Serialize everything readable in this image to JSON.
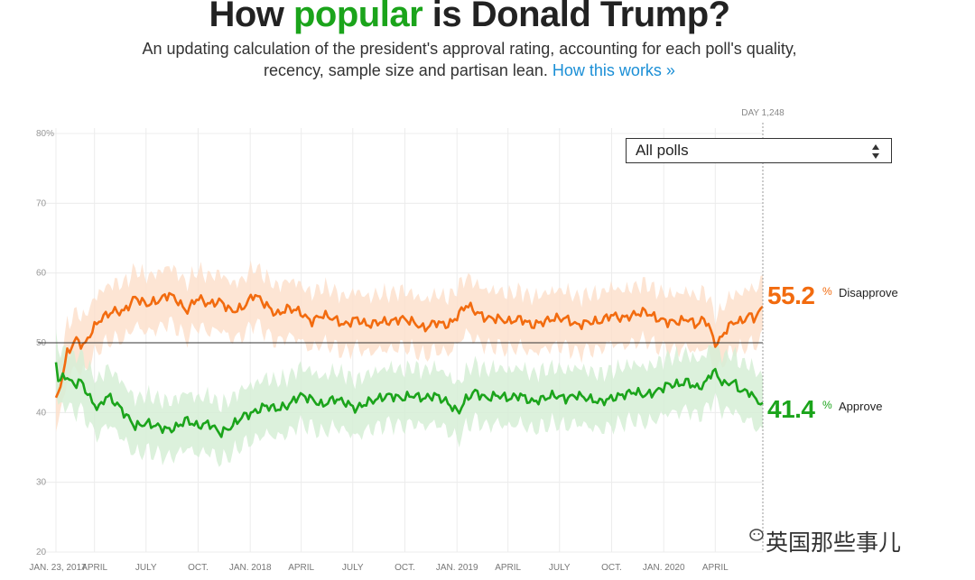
{
  "header": {
    "title_pre": "How ",
    "title_accent": "popular",
    "title_post": " is Donald Trump?",
    "subtitle_line1": "An updating calculation of the president's approval rating, accounting for each poll's quality,",
    "subtitle_line2": "recency, sample size and partisan lean.",
    "link_text": "How this works »"
  },
  "dropdown": {
    "selected": "All polls"
  },
  "day_label": "DAY 1,248",
  "readouts": {
    "disapprove_value": "55.2",
    "disapprove_label": "Disapprove",
    "approve_value": "41.4",
    "approve_label": "Approve",
    "percent_sign": "%"
  },
  "watermark": "英国那些事儿",
  "colors": {
    "approve": "#1ba41b",
    "disapprove": "#f26b0f",
    "approve_band": "#d6efd6",
    "disapprove_band": "#fde0cc",
    "accent_title": "#1ba41b",
    "link": "#1b8fd6"
  },
  "chart_data": {
    "type": "line",
    "title": "How popular is Donald Trump?",
    "ylim": [
      20,
      80
    ],
    "yticks": [
      "80%",
      "70",
      "60",
      "50",
      "40",
      "30",
      "20"
    ],
    "ytick_values": [
      80,
      70,
      60,
      50,
      40,
      30,
      20
    ],
    "xlim_days": [
      0,
      1248
    ],
    "xticks": [
      {
        "label": "JAN. 23, 2017",
        "day": 0
      },
      {
        "label": "APRIL",
        "day": 68
      },
      {
        "label": "JULY",
        "day": 159
      },
      {
        "label": "OCT.",
        "day": 251
      },
      {
        "label": "JAN. 2018",
        "day": 343
      },
      {
        "label": "APRIL",
        "day": 433
      },
      {
        "label": "JULY",
        "day": 524
      },
      {
        "label": "OCT.",
        "day": 616
      },
      {
        "label": "JAN. 2019",
        "day": 708
      },
      {
        "label": "APRIL",
        "day": 798
      },
      {
        "label": "JULY",
        "day": 889
      },
      {
        "label": "OCT.",
        "day": 981
      },
      {
        "label": "JAN. 2020",
        "day": 1073
      },
      {
        "label": "APRIL",
        "day": 1164
      }
    ],
    "series": [
      {
        "name": "Disapprove",
        "days": [
          0,
          8,
          20,
          35,
          50,
          65,
          80,
          100,
          120,
          140,
          160,
          180,
          200,
          215,
          230,
          250,
          270,
          290,
          310,
          330,
          350,
          370,
          390,
          410,
          430,
          450,
          470,
          490,
          510,
          530,
          550,
          570,
          590,
          610,
          630,
          650,
          670,
          690,
          700,
          710,
          725,
          740,
          760,
          780,
          800,
          820,
          840,
          860,
          880,
          900,
          920,
          940,
          960,
          980,
          1000,
          1020,
          1040,
          1060,
          1080,
          1100,
          1115,
          1130,
          1145,
          1155,
          1162,
          1170,
          1180,
          1195,
          1210,
          1225,
          1235,
          1248
        ],
        "values": [
          41.5,
          44,
          48.5,
          50.5,
          49.5,
          52,
          53.5,
          54.5,
          54.5,
          56.5,
          55.5,
          56,
          57,
          56,
          54.5,
          56.5,
          55.5,
          56,
          54.5,
          55,
          57,
          55.5,
          54,
          55,
          54.5,
          53,
          54,
          53.5,
          52.5,
          53.5,
          52.5,
          53,
          53,
          53.5,
          53,
          52,
          53,
          52.5,
          53,
          54,
          55.5,
          54.5,
          53.5,
          53.5,
          53,
          53.5,
          52.5,
          53,
          53.5,
          53.5,
          52.5,
          53,
          53,
          54,
          53.5,
          54,
          54.5,
          53.5,
          53,
          53,
          53.5,
          52.5,
          53.5,
          52,
          50,
          50,
          51.5,
          53,
          53,
          54,
          53.5,
          55.2
        ],
        "uncertainty": 4.0
      },
      {
        "name": "Approve",
        "days": [
          0,
          5,
          15,
          30,
          45,
          60,
          75,
          90,
          110,
          125,
          140,
          160,
          180,
          200,
          215,
          230,
          250,
          270,
          290,
          310,
          330,
          350,
          370,
          390,
          410,
          430,
          450,
          470,
          490,
          510,
          530,
          550,
          570,
          590,
          610,
          630,
          650,
          670,
          690,
          710,
          725,
          740,
          760,
          780,
          800,
          820,
          840,
          860,
          880,
          900,
          920,
          940,
          960,
          980,
          1000,
          1020,
          1040,
          1060,
          1080,
          1100,
          1115,
          1130,
          1145,
          1155,
          1162,
          1170,
          1180,
          1195,
          1210,
          1225,
          1235,
          1248
        ],
        "values": [
          47.5,
          44,
          45.5,
          44,
          44.5,
          42,
          40.5,
          42.5,
          41,
          39.5,
          38,
          38.5,
          38,
          37.5,
          38,
          39,
          38,
          38.5,
          37,
          38,
          39.5,
          40,
          41,
          40.5,
          41,
          42.5,
          42,
          41,
          42,
          41.5,
          40.5,
          41.5,
          42,
          42.5,
          42,
          42.5,
          42,
          42.5,
          41.5,
          40,
          42,
          43,
          42,
          42.5,
          42,
          42.5,
          41.5,
          42,
          42.5,
          42,
          42.5,
          42,
          41.5,
          42,
          42.5,
          43,
          42.5,
          43,
          44,
          44,
          44.5,
          43.5,
          44,
          45.5,
          46,
          45,
          44,
          44.5,
          43,
          43,
          41.8,
          41.4
        ],
        "uncertainty": 4.0
      }
    ]
  }
}
